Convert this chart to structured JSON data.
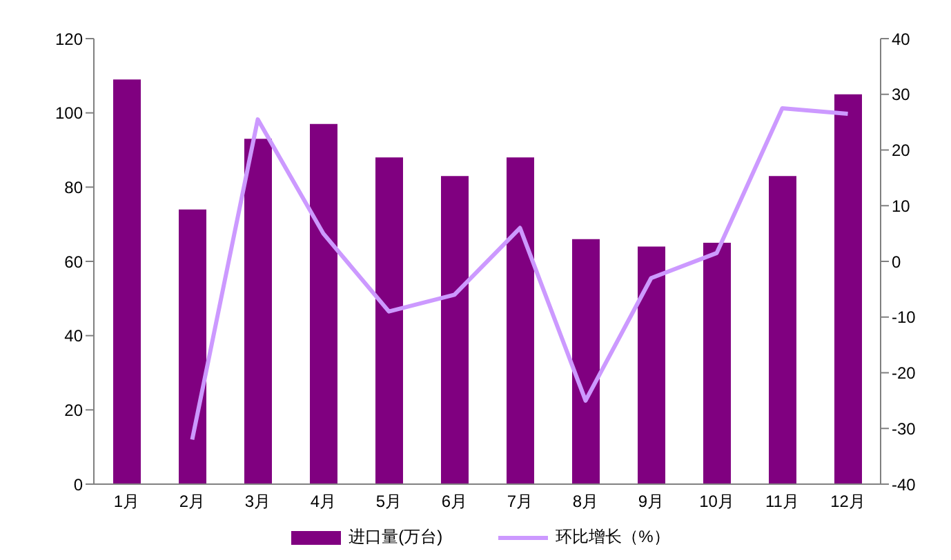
{
  "chart_data": {
    "type": "bar",
    "categories": [
      "1月",
      "2月",
      "3月",
      "4月",
      "5月",
      "6月",
      "7月",
      "8月",
      "9月",
      "10月",
      "11月",
      "12月"
    ],
    "series": [
      {
        "name": "进口量(万台)",
        "color": "#800080",
        "values": [
          109,
          74,
          93,
          97,
          88,
          83,
          88,
          66,
          64,
          65,
          83,
          105
        ]
      },
      {
        "name": "环比增长（%）",
        "type": "line",
        "axis": "y2",
        "color": "#cc99ff",
        "marker": "none",
        "values": [
          null,
          -32,
          25.5,
          5,
          -9,
          -6,
          6,
          -25,
          -3,
          1.5,
          27.5,
          26.5
        ]
      }
    ],
    "ylim": [
      0,
      120
    ],
    "yticks": [
      0,
      20,
      40,
      60,
      80,
      100,
      120
    ],
    "y2lim": [
      -40,
      40
    ],
    "y2ticks": [
      -40,
      -30,
      -20,
      -10,
      0,
      10,
      20,
      30,
      40
    ],
    "grid": false,
    "legend": "bottom"
  }
}
